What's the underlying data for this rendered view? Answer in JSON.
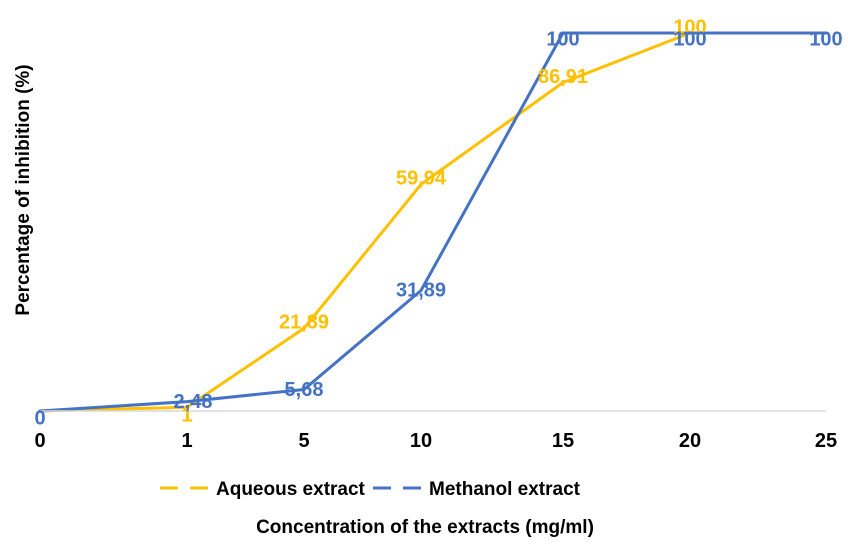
{
  "chart_data": {
    "type": "line",
    "x": [
      "0",
      "1",
      "5",
      "10",
      "15",
      "20",
      "25"
    ],
    "series": [
      {
        "name": "Aqueous extract",
        "color": "#FFC000",
        "line_style": "solid",
        "legend_style": "dashed",
        "values": [
          0,
          1,
          21.89,
          59.94,
          86.91,
          100,
          100
        ],
        "labels": [
          "",
          "1",
          "21,89",
          "59,94",
          "86,91",
          "100",
          ""
        ]
      },
      {
        "name": "Methanol extract",
        "color": "#4472C4",
        "line_style": "solid",
        "legend_style": "dashed",
        "values": [
          0,
          2.48,
          5.68,
          31.89,
          100,
          100,
          100
        ],
        "labels": [
          "0",
          "2,48",
          "5,68",
          "31,89",
          "100",
          "100",
          "100"
        ]
      }
    ],
    "xlabel": "Concentration of the extracts (mg/ml)",
    "ylabel": "Percentage of inhibition  (%)",
    "ylim": [
      0,
      100
    ],
    "grid": false,
    "legend_position": "bottom"
  }
}
